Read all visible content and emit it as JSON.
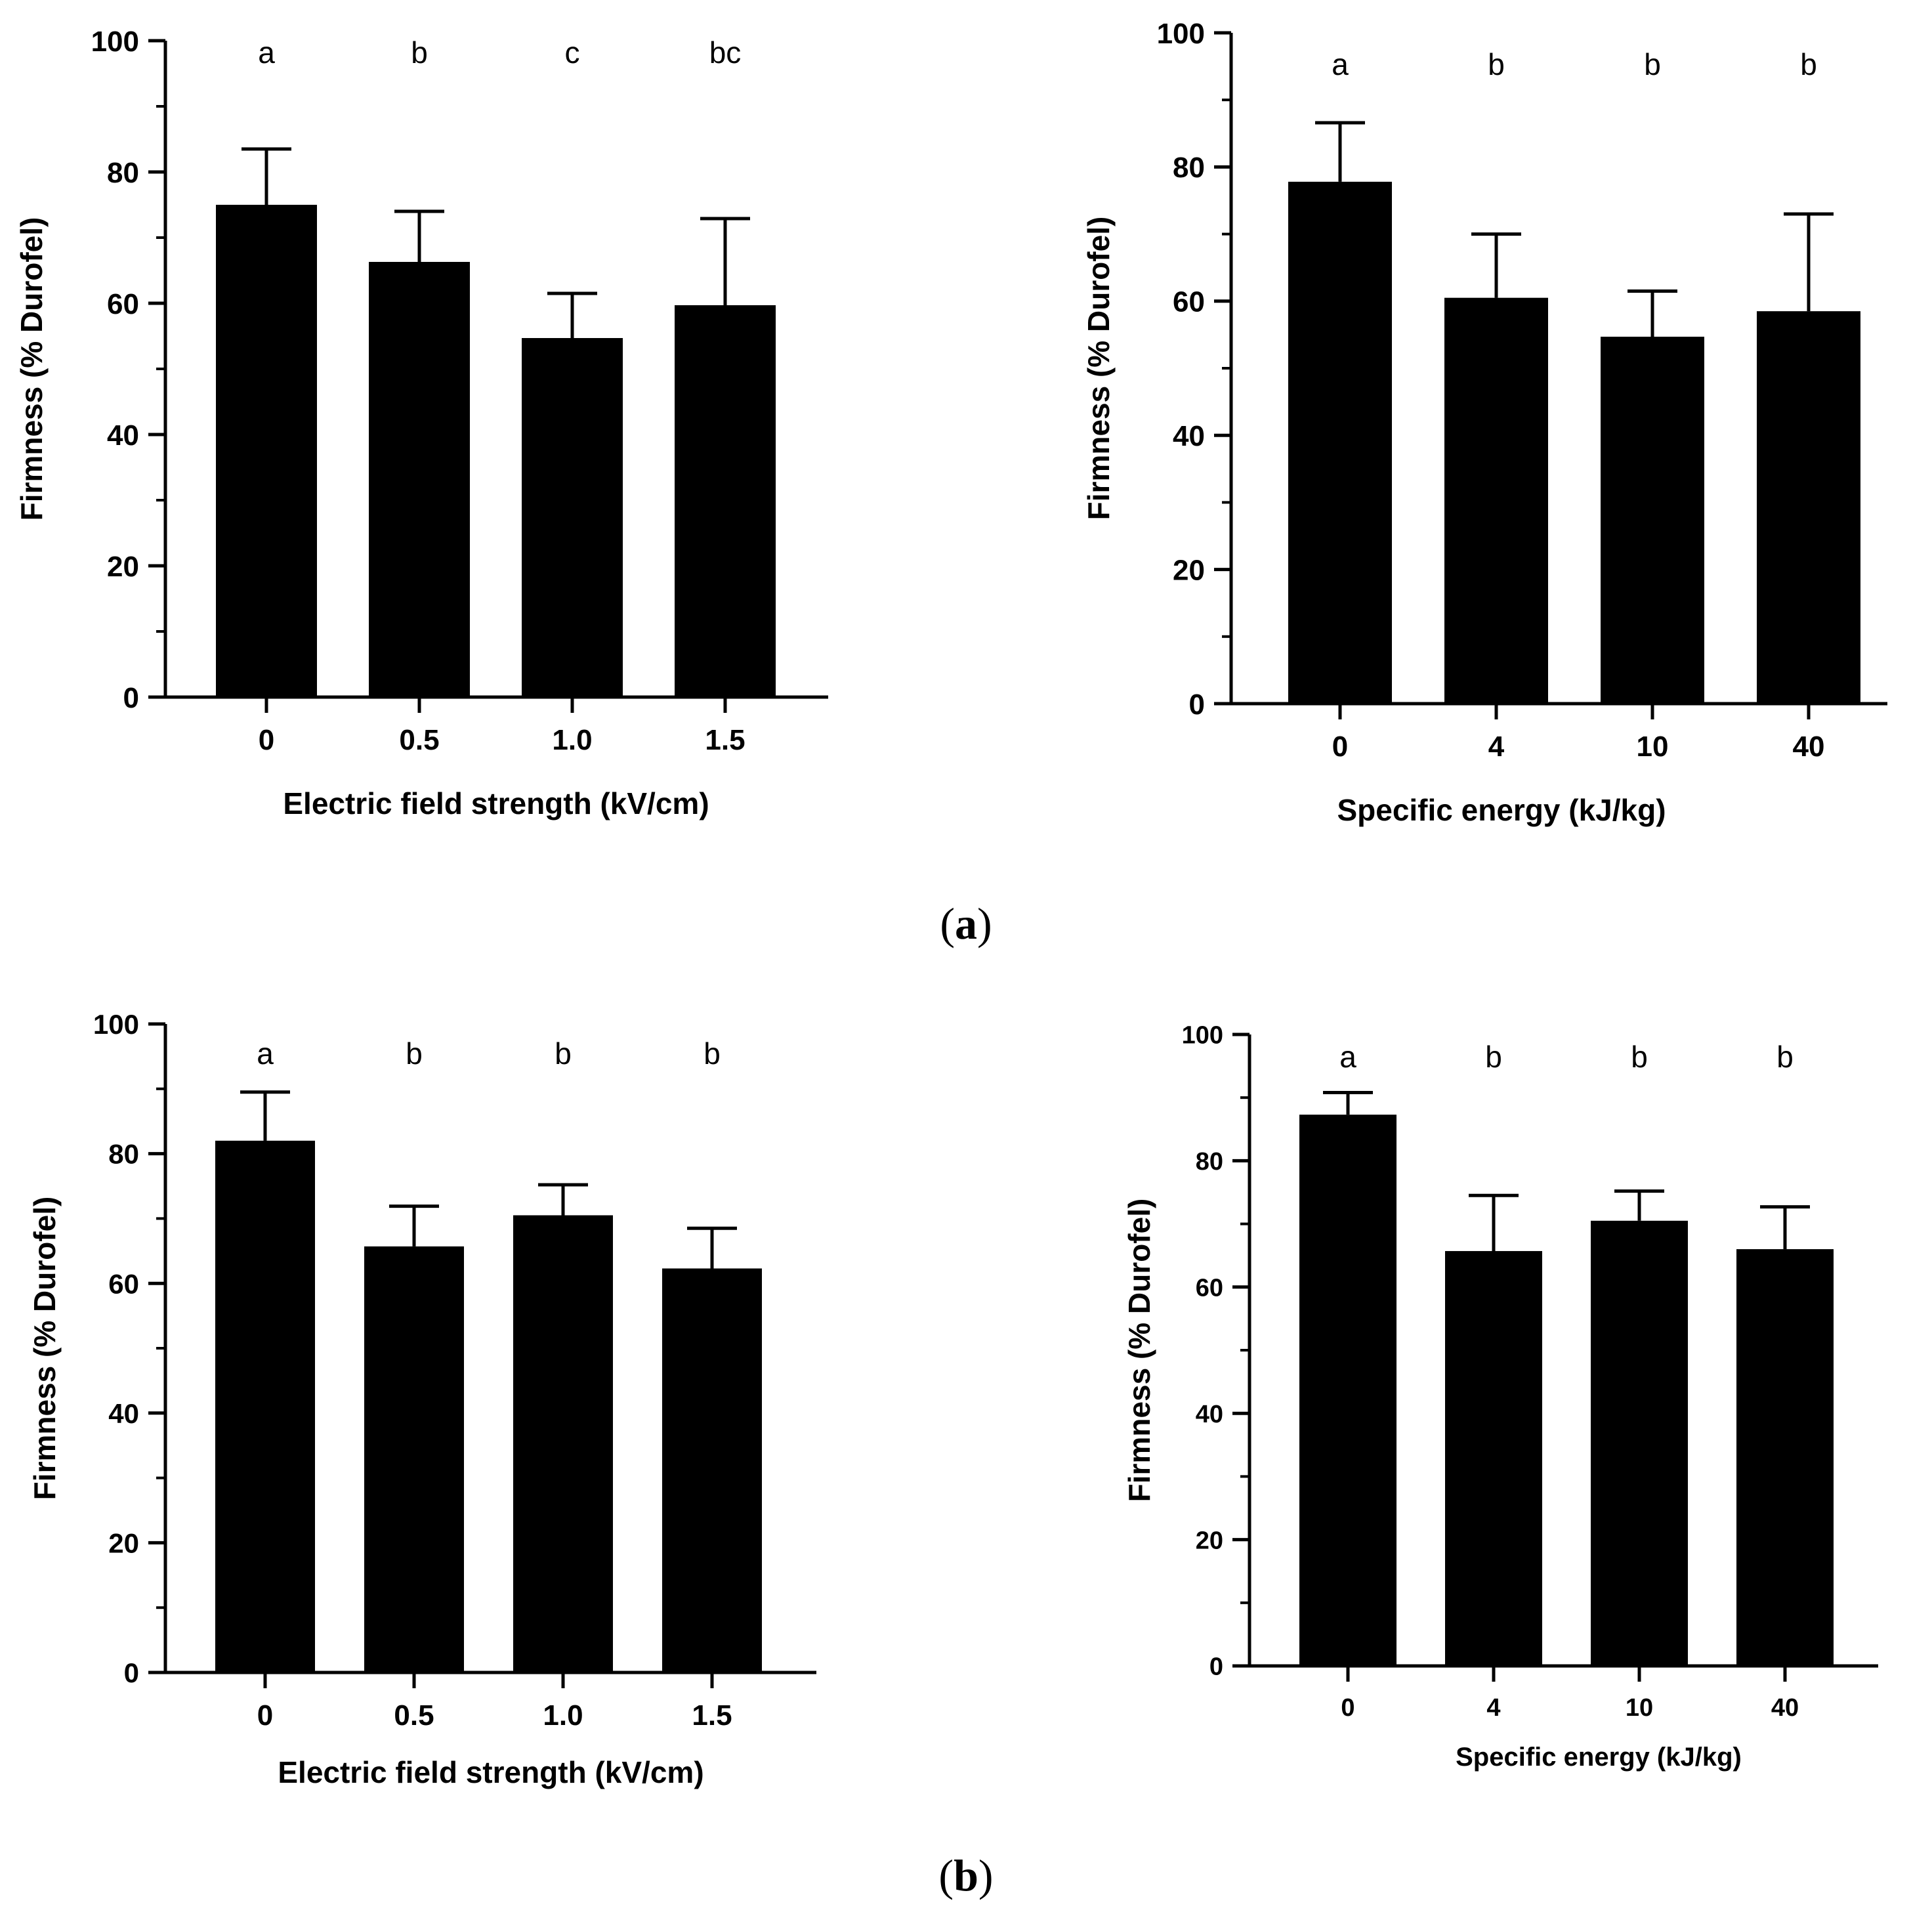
{
  "panel_labels": {
    "a_open": "(",
    "a_letter": "a",
    "a_close": ")",
    "b_open": "(",
    "b_letter": "b",
    "b_close": ")"
  },
  "colors": {
    "bars": "#000000",
    "axes": "#000000",
    "background": "#ffffff"
  },
  "chart_data": [
    {
      "id": "a-left",
      "type": "bar",
      "categories": [
        "0",
        "0.5",
        "1.0",
        "1.5"
      ],
      "values": [
        75,
        66.3,
        54.7,
        59.7
      ],
      "errors": [
        8.5,
        7.7,
        6.8,
        13.2
      ],
      "significance": [
        "a",
        "b",
        "c",
        "bc"
      ],
      "title": "",
      "xlabel": "Electric field strength (kV/cm)",
      "ylabel": "Firmness  (% Durofel)",
      "ylim": [
        0,
        100
      ],
      "yticks": [
        "0",
        "20",
        "40",
        "60",
        "80",
        "100"
      ]
    },
    {
      "id": "a-right",
      "type": "bar",
      "categories": [
        "0",
        "4",
        "10",
        "40"
      ],
      "values": [
        77.8,
        60.5,
        54.7,
        58.5
      ],
      "errors": [
        8.8,
        9.5,
        6.8,
        14.5
      ],
      "significance": [
        "a",
        "b",
        "b",
        "b"
      ],
      "title": "",
      "xlabel": "Specific energy (kJ/kg)",
      "ylabel": "Firmness (% Durofel)",
      "ylim": [
        0,
        100
      ],
      "yticks": [
        "0",
        "20",
        "40",
        "60",
        "80",
        "100"
      ]
    },
    {
      "id": "b-left",
      "type": "bar",
      "categories": [
        "0",
        "0.5",
        "1.0",
        "1.5"
      ],
      "values": [
        82,
        65.7,
        70.5,
        62.3
      ],
      "errors": [
        7.5,
        6.2,
        4.7,
        6.2
      ],
      "significance": [
        "a",
        "b",
        "b",
        "b"
      ],
      "title": "",
      "xlabel": "Electric field strength (kV/cm)",
      "ylabel": "Firmness (% Durofel)",
      "ylim": [
        0,
        100
      ],
      "yticks": [
        "0",
        "20",
        "40",
        "60",
        "80",
        "100"
      ]
    },
    {
      "id": "b-right",
      "type": "bar",
      "categories": [
        "0",
        "4",
        "10",
        "40"
      ],
      "values": [
        87.3,
        65.7,
        70.5,
        66
      ],
      "errors": [
        3.5,
        8.8,
        4.7,
        6.7
      ],
      "significance": [
        "a",
        "b",
        "b",
        "b"
      ],
      "title": "",
      "xlabel": "Specific energy (kJ/kg)",
      "ylabel": "Firmness (% Durofel)",
      "ylim": [
        0,
        100
      ],
      "yticks": [
        "0",
        "20",
        "40",
        "60",
        "80",
        "100"
      ]
    }
  ]
}
